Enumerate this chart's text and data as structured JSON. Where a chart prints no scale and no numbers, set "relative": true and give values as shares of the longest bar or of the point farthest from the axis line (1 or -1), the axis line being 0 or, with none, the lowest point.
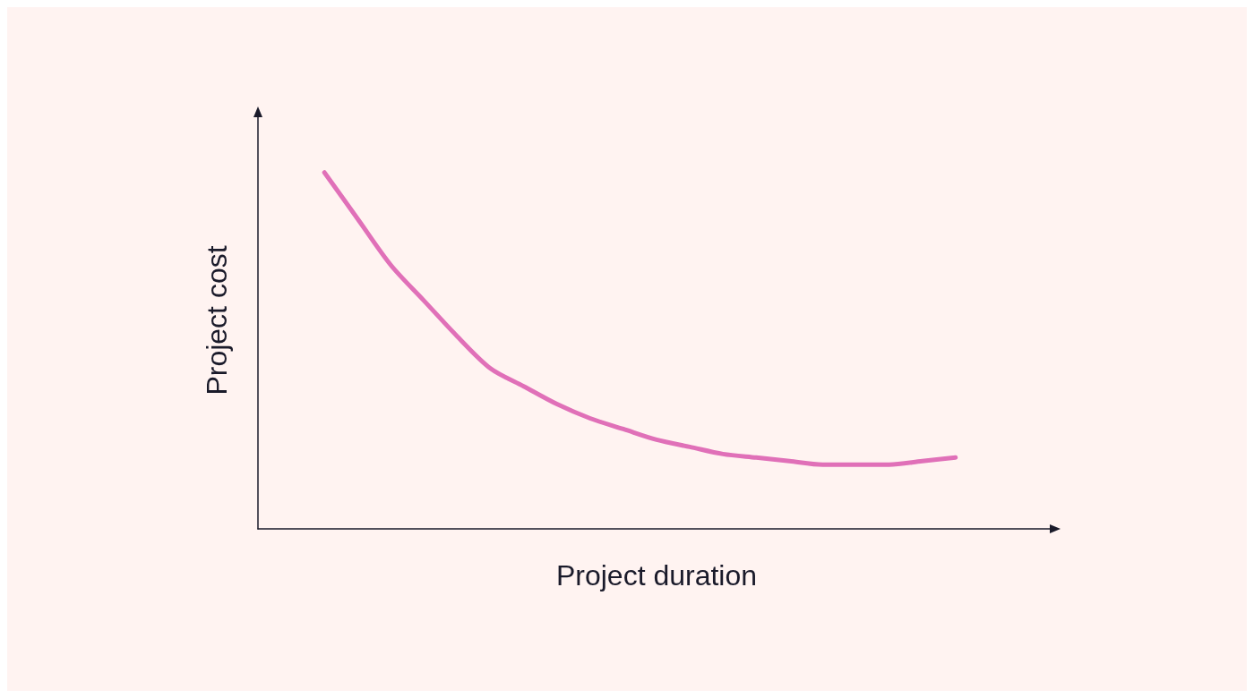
{
  "chart_data": {
    "type": "line",
    "relative": true,
    "xlabel": "Project duration",
    "ylabel": "Project cost",
    "grid": false,
    "marker": "none",
    "line_style": "solid",
    "categories": [
      null,
      null,
      null,
      null,
      null,
      null,
      null,
      null,
      null,
      null,
      null,
      null,
      null,
      null,
      null,
      null,
      null,
      null,
      null,
      null,
      null,
      null,
      null,
      null,
      null
    ],
    "series": [
      {
        "color": "#e070b8",
        "values": [
          null,
          null,
          1.0,
          0.87,
          0.74,
          0.64,
          0.54,
          0.45,
          0.4,
          0.35,
          0.31,
          0.28,
          0.25,
          0.23,
          0.21,
          0.2,
          0.19,
          0.18,
          0.18,
          0.18,
          0.19,
          0.2,
          null,
          null,
          null
        ]
      }
    ]
  }
}
